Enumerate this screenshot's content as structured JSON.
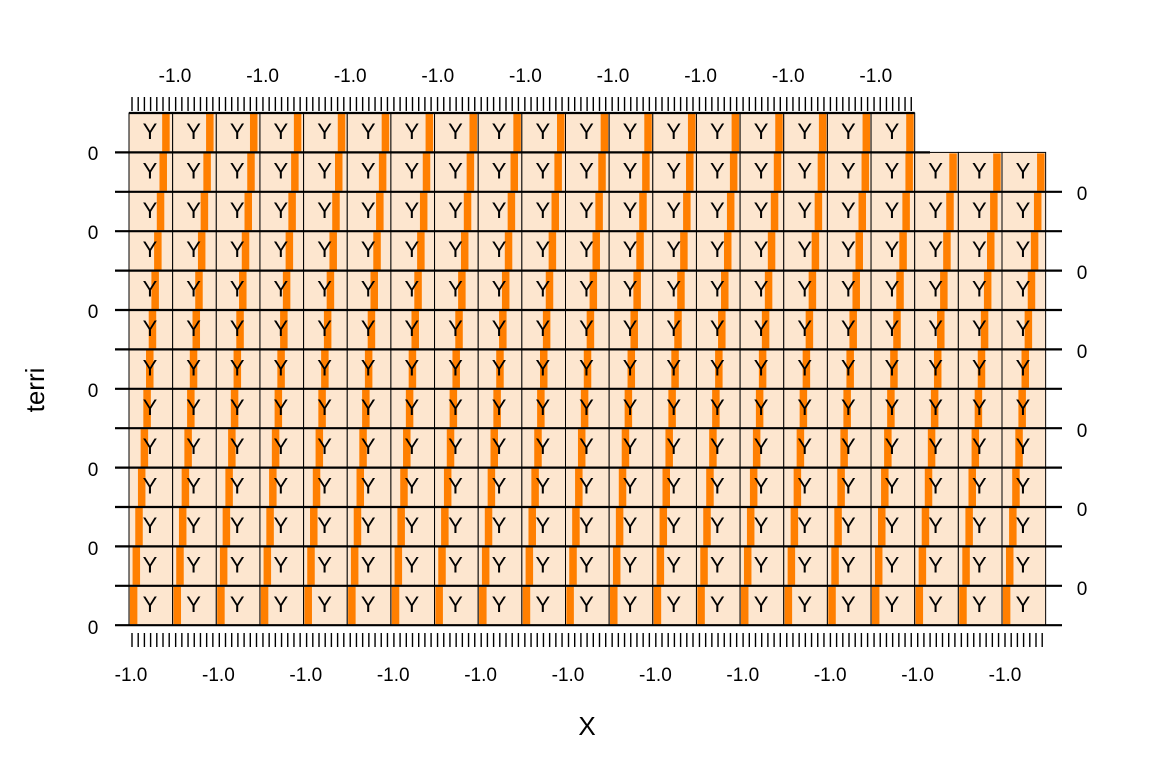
{
  "chart_data": {
    "type": "bar",
    "layout": "trellis-grid",
    "xlabel": "X",
    "ylabel": "terri",
    "strip_letter": "Y",
    "columns": 21,
    "rows": 13,
    "top_row_panels": 18,
    "x_tick_label": "-1.0",
    "y_tick_label": "0",
    "colors": {
      "panel_fill": "#fde6cf",
      "bar": "#ff7f00",
      "line": "#000000"
    },
    "panels_note": "each panel shows the same strip label and a single narrow orange bar"
  }
}
